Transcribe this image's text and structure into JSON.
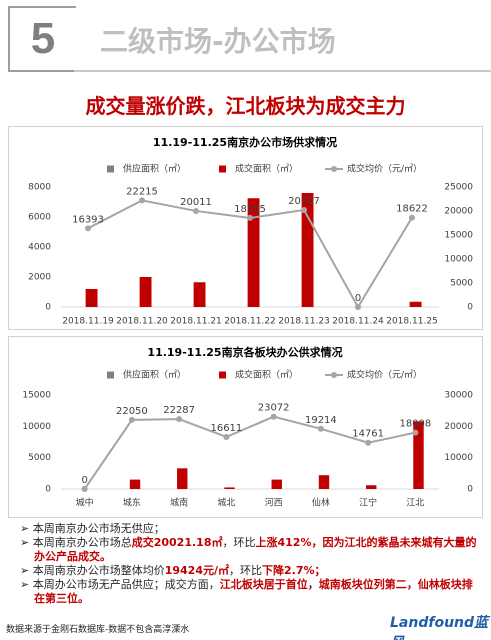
{
  "header": {
    "number": "5",
    "title": "二级市场-办公市场"
  },
  "headline": "成交量涨价跌，江北板块为成交主力",
  "chart_data": [
    {
      "type": "bar",
      "title": "11.19-11.25南京办公市场供求情况",
      "categories": [
        "2018.11.19",
        "2018.11.20",
        "2018.11.21",
        "2018.11.22",
        "2018.11.23",
        "2018.11.24",
        "2018.11.25"
      ],
      "series": [
        {
          "name": "供应面积（㎡）",
          "color": "#808080",
          "values": [
            0,
            0,
            0,
            0,
            0,
            0,
            0
          ]
        },
        {
          "name": "成交面积（㎡）",
          "color": "#c00000",
          "values": [
            1200,
            2000,
            1650,
            7250,
            7600,
            0,
            350
          ]
        },
        {
          "name": "成交均价（元/㎡）",
          "color": "#a5a5a5",
          "axis": "y2",
          "type": "line",
          "values": [
            16393,
            22215,
            20011,
            18555,
            20207,
            0,
            18622
          ]
        }
      ],
      "ylim": [
        0,
        8000
      ],
      "yticks": [
        0,
        2000,
        4000,
        6000,
        8000
      ],
      "y2lim": [
        0,
        25000
      ],
      "y2ticks": [
        0,
        5000,
        10000,
        15000,
        20000,
        25000
      ],
      "legend": "top"
    },
    {
      "type": "bar",
      "title": "11.19-11.25南京各板块办公供求情况",
      "categories": [
        "城中",
        "城东",
        "城南",
        "城北",
        "河西",
        "仙林",
        "江宁",
        "江北"
      ],
      "series": [
        {
          "name": "供应面积（㎡）",
          "color": "#808080",
          "values": [
            0,
            0,
            0,
            0,
            0,
            0,
            0,
            0
          ]
        },
        {
          "name": "成交面积（㎡）",
          "color": "#c00000",
          "values": [
            0,
            1500,
            3300,
            250,
            1500,
            2200,
            600,
            10800
          ]
        },
        {
          "name": "成交均价（元/㎡）",
          "color": "#a5a5a5",
          "axis": "y2",
          "type": "line",
          "values": [
            0,
            22050,
            22287,
            16611,
            23072,
            19214,
            14761,
            18008
          ]
        }
      ],
      "ylim": [
        0,
        15000
      ],
      "yticks": [
        0,
        5000,
        10000,
        15000
      ],
      "y2lim": [
        0,
        30000
      ],
      "y2ticks": [
        0,
        10000,
        20000,
        30000
      ],
      "legend": "top"
    }
  ],
  "bullets": [
    [
      "本周南京办公市场无供应；"
    ],
    [
      "本周南京办公市场总",
      "成交20021.18㎡",
      "，环比",
      "上涨412%，因为江北的紫晶未来城有大量的办公产品成交。"
    ],
    [
      "本周南京办公市场整体均价",
      "19424元/㎡",
      "，环比",
      "下降2.7%；"
    ],
    [
      "本周办公市场无产品供应；成交方面，",
      "江北板块居于首位，城南板块位列第二，仙林板块排在第三位。"
    ]
  ],
  "footer": "数据来源于金刚石数据库-数据不包含高淳溧水",
  "logo": "Landfound蓝风"
}
